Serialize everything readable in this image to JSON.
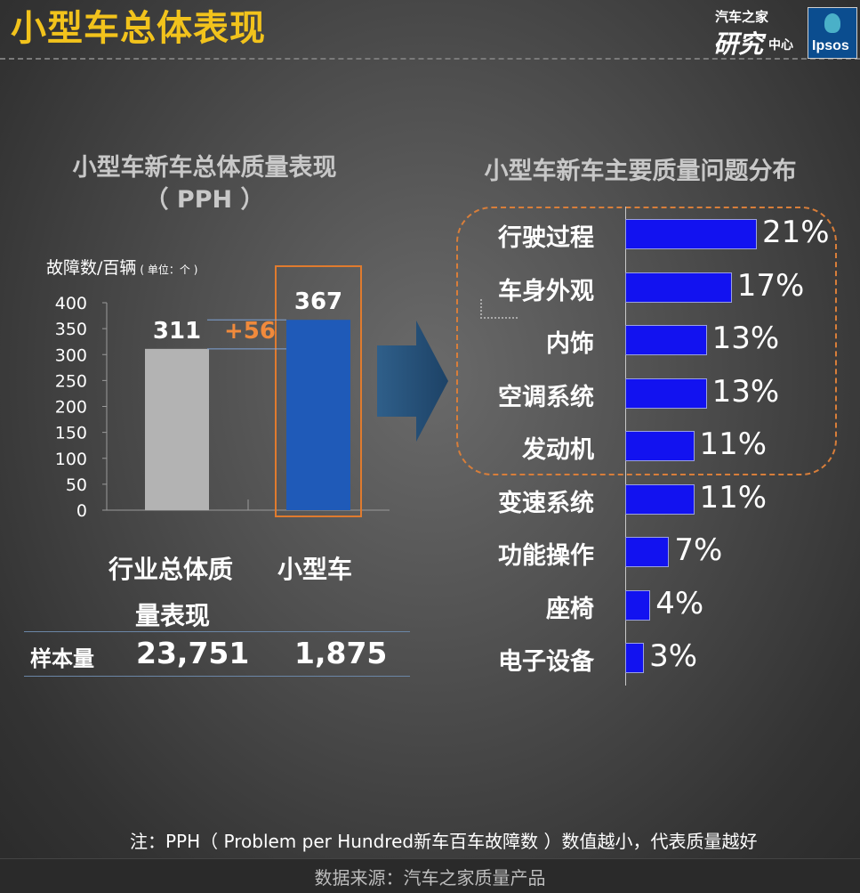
{
  "header": {
    "title": "小型车总体表现",
    "logo_autohome": [
      "汽车之家",
      "研究",
      "中心"
    ],
    "logo_ipsos": "Ipsos",
    "accent_color": "#f2c31c"
  },
  "left_panel": {
    "title_line1": "小型车新车总体质量表现",
    "title_line2": "（ PPH ）",
    "ylabel": "故障数/百辆",
    "unit": "( 单位：个 )",
    "diff_label": "+56",
    "category_labels": [
      "行业总体质",
      "量表现",
      "小型车"
    ],
    "sample_label": "样本量",
    "sample_values": [
      "23,751",
      "1,875"
    ]
  },
  "right_panel": {
    "title": "小型车新车主要质量问题分布"
  },
  "chart_data": [
    {
      "type": "bar",
      "categories": [
        "行业总体质量表现",
        "小型车"
      ],
      "values": [
        311,
        367
      ],
      "value_labels": [
        "311",
        "367"
      ],
      "ylim": [
        0,
        400
      ],
      "yticks": [
        "0",
        "50",
        "100",
        "150",
        "200",
        "250",
        "300",
        "350",
        "400"
      ],
      "colors": [
        "#b3b3b3",
        "#1f5ab8"
      ],
      "highlight_color": "#e07b2e"
    },
    {
      "type": "bar",
      "orientation": "horizontal",
      "categories": [
        "行驶过程",
        "车身外观",
        "内饰",
        "空调系统",
        "发动机",
        "变速系统",
        "功能操作",
        "座椅",
        "电子设备"
      ],
      "values": [
        21,
        17,
        13,
        13,
        11,
        11,
        7,
        4,
        3
      ],
      "value_labels": [
        "21%",
        "17%",
        "13%",
        "13%",
        "11%",
        "11%",
        "7%",
        "4%",
        "3%"
      ],
      "xlim": [
        0,
        21
      ],
      "color": "#1212f0",
      "highlight_color": "#d87e3a"
    }
  ],
  "footer": {
    "note": "注：PPH（ Problem  per  Hundred新车百车故障数 ）数值越小，代表质量越好",
    "source": "数据来源：汽车之家质量产品"
  }
}
